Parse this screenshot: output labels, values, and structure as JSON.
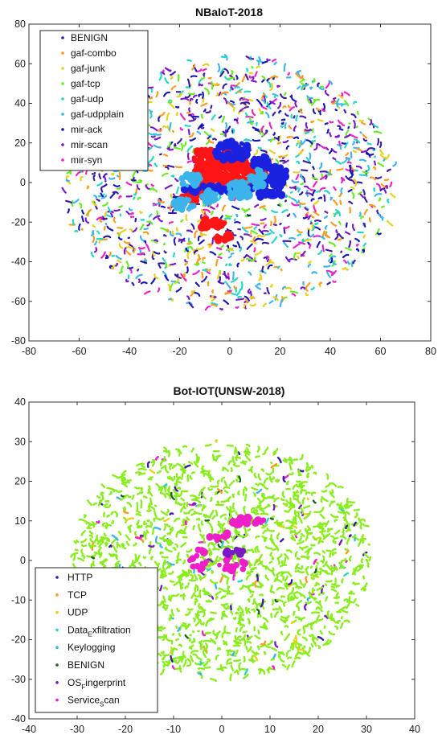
{
  "chart_data": [
    {
      "type": "scatter",
      "title": "NBaIoT-2018",
      "xlabel": "",
      "ylabel": "",
      "xlim": [
        -80,
        80
      ],
      "ylim": [
        -80,
        80
      ],
      "xticks": [
        -80,
        -60,
        -40,
        -20,
        0,
        20,
        40,
        60,
        80
      ],
      "yticks": [
        -80,
        -60,
        -40,
        -20,
        0,
        20,
        40,
        60,
        80
      ],
      "grid": false,
      "legend_position": "top-left",
      "cloud": {
        "cx": 0,
        "cy": 0,
        "rx": 66,
        "ry": 64
      },
      "series": [
        {
          "name": "BENIGN",
          "color": "#3b1aa6"
        },
        {
          "name": "gaf-combo",
          "color": "#ff9a1a"
        },
        {
          "name": "gaf-junk",
          "color": "#e6d21a"
        },
        {
          "name": "gaf-tcp",
          "color": "#66ee22"
        },
        {
          "name": "gaf-udp",
          "color": "#22d6c8"
        },
        {
          "name": "gaf-udpplain",
          "color": "#3ab4ea"
        },
        {
          "name": "mir-ack",
          "color": "#1515b5"
        },
        {
          "name": "mir-scan",
          "color": "#7a18c8"
        },
        {
          "name": "mir-syn",
          "color": "#ee1ec8"
        }
      ],
      "clusters": [
        {
          "color": "#ff1515",
          "x": -6,
          "y": 3,
          "rx": 9,
          "ry": 7
        },
        {
          "color": "#ff1515",
          "x": 8,
          "y": 4,
          "rx": 6,
          "ry": 6
        },
        {
          "color": "#ff1515",
          "x": -10,
          "y": 12,
          "rx": 5,
          "ry": 5
        },
        {
          "color": "#ff1515",
          "x": -14,
          "y": -7,
          "rx": 5,
          "ry": 3
        },
        {
          "color": "#ff1515",
          "x": -7,
          "y": -21,
          "rx": 5,
          "ry": 3
        },
        {
          "color": "#ff1515",
          "x": -2,
          "y": -28,
          "rx": 4,
          "ry": 2
        },
        {
          "color": "#ff1515",
          "x": 2,
          "y": 12,
          "rx": 5,
          "ry": 6
        },
        {
          "color": "#1a22e0",
          "x": 1,
          "y": 16,
          "rx": 7,
          "ry": 5
        },
        {
          "color": "#1a22e0",
          "x": 15,
          "y": -3,
          "rx": 7,
          "ry": 6
        },
        {
          "color": "#1a22e0",
          "x": 13,
          "y": 10,
          "rx": 4,
          "ry": 4
        },
        {
          "color": "#1a22e0",
          "x": -4,
          "y": -3,
          "rx": 16,
          "ry": 2
        },
        {
          "color": "#1a22e0",
          "x": 19,
          "y": 5,
          "rx": 4,
          "ry": 3
        },
        {
          "color": "#3ab4ea",
          "x": -15,
          "y": 1,
          "rx": 5,
          "ry": 3
        },
        {
          "color": "#3ab4ea",
          "x": 11,
          "y": 2,
          "rx": 3,
          "ry": 5
        },
        {
          "color": "#3ab4ea",
          "x": -18,
          "y": -11,
          "rx": 4,
          "ry": 3
        },
        {
          "color": "#3ab4ea",
          "x": 4,
          "y": -4,
          "rx": 5,
          "ry": 5
        },
        {
          "color": "#3ab4ea",
          "x": -8,
          "y": -7,
          "rx": 3,
          "ry": 3
        }
      ]
    },
    {
      "type": "scatter",
      "title": "Bot-IOT(UNSW-2018)",
      "xlabel": "",
      "ylabel": "",
      "xlim": [
        -40,
        40
      ],
      "ylim": [
        -40,
        40
      ],
      "xticks": [
        -40,
        -30,
        -20,
        -10,
        0,
        10,
        20,
        30,
        40
      ],
      "yticks": [
        -40,
        -30,
        -20,
        -10,
        0,
        10,
        20,
        30,
        40
      ],
      "grid": false,
      "legend_position": "bottom-left",
      "cloud": {
        "cx": 0,
        "cy": 0,
        "rx": 31,
        "ry": 30
      },
      "series": [
        {
          "name": "HTTP",
          "label_main": "HTTP",
          "label_sub": "",
          "label_tail": "",
          "color": "#3b1aa6"
        },
        {
          "name": "TCP",
          "label_main": "TCP",
          "label_sub": "",
          "label_tail": "",
          "color": "#ff9a1a"
        },
        {
          "name": "UDP",
          "label_main": "UDP",
          "label_sub": "",
          "label_tail": "",
          "color": "#e6d21a"
        },
        {
          "name": "Data_Exfiltration",
          "label_main": "Data",
          "label_sub": "E",
          "label_tail": "xfiltration",
          "color": "#22d6c8"
        },
        {
          "name": "Keylogging",
          "label_main": "Keylogging",
          "label_sub": "",
          "label_tail": "",
          "color": "#3ab4ea"
        },
        {
          "name": "BENIGN",
          "label_main": "BENIGN",
          "label_sub": "",
          "label_tail": "",
          "color": "#1a6020"
        },
        {
          "name": "OS_Fingerprint",
          "label_main": "OS",
          "label_sub": "F",
          "label_tail": "ingerprint",
          "color": "#7a18c8"
        },
        {
          "name": "Service_Scan",
          "label_main": "Service",
          "label_sub": "S",
          "label_tail": "can",
          "color": "#ee1ec8"
        }
      ],
      "dominant_color": "#88ee1a",
      "clusters": [
        {
          "color": "#ee1ec8",
          "x": -5,
          "y": 0,
          "rx": 2,
          "ry": 3
        },
        {
          "color": "#ee1ec8",
          "x": 2,
          "y": -1,
          "rx": 3,
          "ry": 2
        },
        {
          "color": "#ee1ec8",
          "x": 0,
          "y": 6,
          "rx": 3,
          "ry": 1
        },
        {
          "color": "#7a18c8",
          "x": 3,
          "y": 2,
          "rx": 3,
          "ry": 1
        },
        {
          "color": "#ee1ec8",
          "x": 5,
          "y": 10,
          "rx": 4,
          "ry": 1
        }
      ]
    }
  ]
}
